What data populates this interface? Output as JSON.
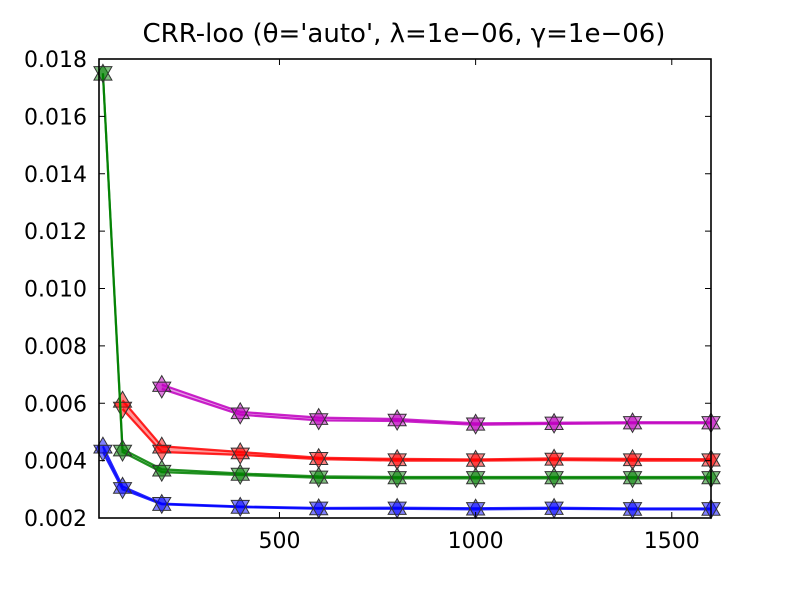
{
  "chart_data": {
    "type": "line",
    "title": "CRR-loo (θ='auto', λ=1e−06, γ=1e−06)",
    "xlabel": "",
    "ylabel": "",
    "xlim": [
      40,
      1600
    ],
    "ylim": [
      0.002,
      0.018
    ],
    "xticks": [
      500,
      1000,
      1500
    ],
    "xtick_labels": [
      "500",
      "1000",
      "1500"
    ],
    "yticks": [
      0.002,
      0.004,
      0.006,
      0.008,
      0.01,
      0.012,
      0.014,
      0.016,
      0.018
    ],
    "ytick_labels": [
      "0.002",
      "0.004",
      "0.006",
      "0.008",
      "0.010",
      "0.012",
      "0.014",
      "0.016",
      "0.018"
    ],
    "grid": false,
    "legend": "none",
    "series": [
      {
        "color": "#bf00bf",
        "x": [
          200,
          400,
          600,
          800,
          1000,
          1200,
          1400,
          1600
        ],
        "upper": [
          0.00665,
          0.0057,
          0.0055,
          0.00545,
          0.0053,
          0.00532,
          0.00534,
          0.00534
        ],
        "lower": [
          0.0065,
          0.0056,
          0.0054,
          0.00538,
          0.00525,
          0.00528,
          0.0053,
          0.0053
        ]
      },
      {
        "color": "#ff0000",
        "x": [
          100,
          200,
          400,
          600,
          800,
          1000,
          1200,
          1400,
          1600
        ],
        "upper": [
          0.0061,
          0.0045,
          0.0043,
          0.0041,
          0.00406,
          0.00404,
          0.00408,
          0.00406,
          0.00405
        ],
        "lower": [
          0.0058,
          0.0043,
          0.0042,
          0.00405,
          0.004,
          0.004,
          0.00402,
          0.004,
          0.004
        ]
      },
      {
        "color": "#008000",
        "x": [
          50,
          100,
          200,
          400,
          600,
          800,
          1000,
          1200,
          1400,
          1600
        ],
        "upper": [
          0.0175,
          0.0044,
          0.0037,
          0.00355,
          0.00345,
          0.00343,
          0.00343,
          0.00343,
          0.00343,
          0.00343
        ],
        "lower": [
          0.0175,
          0.0043,
          0.0036,
          0.0035,
          0.0034,
          0.00338,
          0.00338,
          0.00338,
          0.00338,
          0.00338
        ]
      },
      {
        "color": "#0000ff",
        "x": [
          50,
          100,
          200,
          400,
          600,
          800,
          1000,
          1200,
          1400,
          1600
        ],
        "upper": [
          0.0045,
          0.0031,
          0.0025,
          0.0024,
          0.00235,
          0.00236,
          0.00234,
          0.00236,
          0.00233,
          0.00233
        ],
        "lower": [
          0.0043,
          0.003,
          0.00248,
          0.00238,
          0.00232,
          0.00232,
          0.0023,
          0.00232,
          0.0023,
          0.0023
        ]
      }
    ]
  }
}
